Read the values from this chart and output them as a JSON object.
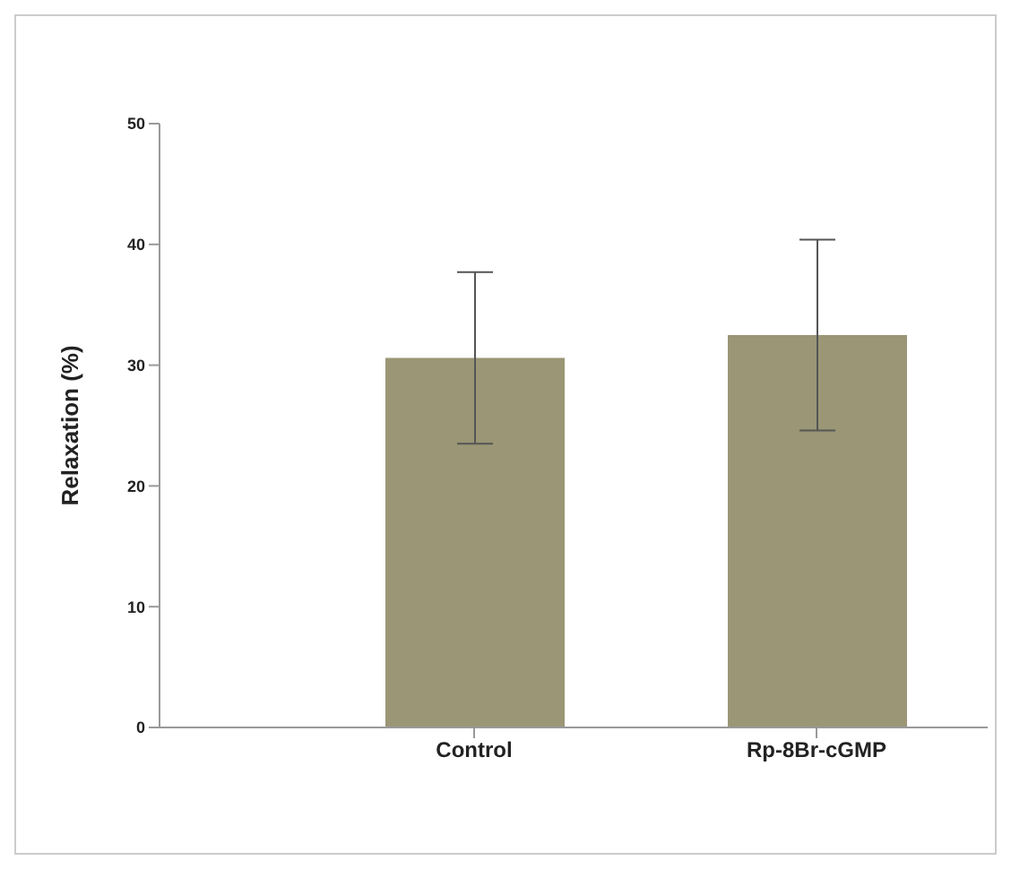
{
  "chart_data": {
    "type": "bar",
    "ylabel": "Relaxation (%)",
    "categories": [
      "Control",
      "Rp-8Br-cGMP"
    ],
    "values": [
      30.6,
      32.5
    ],
    "errors": [
      7.1,
      7.9
    ],
    "color": "#9a9676",
    "ylim": [
      0,
      50
    ],
    "yticks": [
      0,
      10,
      20,
      30,
      40,
      50
    ],
    "grid": false
  }
}
